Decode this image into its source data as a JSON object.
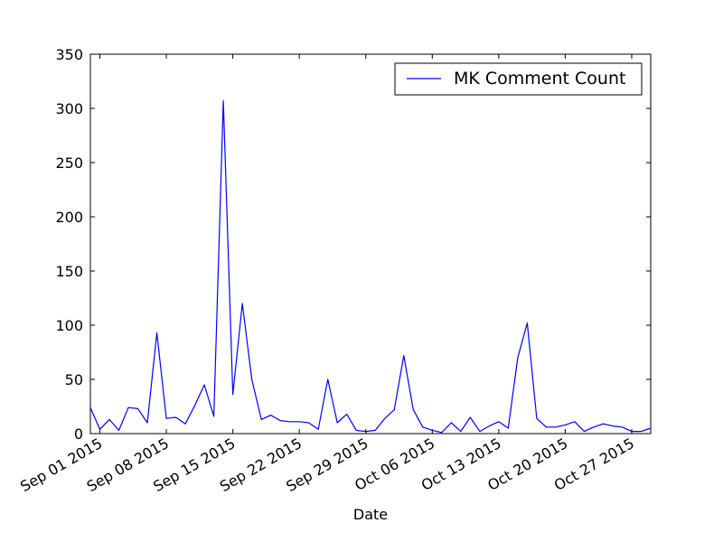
{
  "chart_data": {
    "type": "line",
    "title": "",
    "xlabel": "Date",
    "ylabel": "",
    "ylim": [
      0,
      350
    ],
    "xlim": [
      "2015-08-31",
      "2015-10-29"
    ],
    "grid": false,
    "legend_position": "upper right",
    "y_ticks": [
      0,
      50,
      100,
      150,
      200,
      250,
      300,
      350
    ],
    "x_ticks": [
      {
        "date": "2015-09-01",
        "label": "Sep 01 2015"
      },
      {
        "date": "2015-09-08",
        "label": "Sep 08 2015"
      },
      {
        "date": "2015-09-15",
        "label": "Sep 15 2015"
      },
      {
        "date": "2015-09-22",
        "label": "Sep 22 2015"
      },
      {
        "date": "2015-09-29",
        "label": "Sep 29 2015"
      },
      {
        "date": "2015-10-06",
        "label": "Oct 06 2015"
      },
      {
        "date": "2015-10-13",
        "label": "Oct 13 2015"
      },
      {
        "date": "2015-10-20",
        "label": "Oct 20 2015"
      },
      {
        "date": "2015-10-27",
        "label": "Oct 27 2015"
      }
    ],
    "series": [
      {
        "name": "MK Comment Count",
        "color": "#0000ff",
        "x": [
          "2015-08-31",
          "2015-09-01",
          "2015-09-02",
          "2015-09-03",
          "2015-09-04",
          "2015-09-05",
          "2015-09-06",
          "2015-09-07",
          "2015-09-08",
          "2015-09-09",
          "2015-09-10",
          "2015-09-11",
          "2015-09-12",
          "2015-09-13",
          "2015-09-14",
          "2015-09-15",
          "2015-09-16",
          "2015-09-17",
          "2015-09-18",
          "2015-09-19",
          "2015-09-20",
          "2015-09-21",
          "2015-09-22",
          "2015-09-23",
          "2015-09-24",
          "2015-09-25",
          "2015-09-26",
          "2015-09-27",
          "2015-09-28",
          "2015-09-29",
          "2015-09-30",
          "2015-10-01",
          "2015-10-02",
          "2015-10-03",
          "2015-10-04",
          "2015-10-05",
          "2015-10-06",
          "2015-10-07",
          "2015-10-08",
          "2015-10-09",
          "2015-10-10",
          "2015-10-11",
          "2015-10-12",
          "2015-10-13",
          "2015-10-14",
          "2015-10-15",
          "2015-10-16",
          "2015-10-17",
          "2015-10-18",
          "2015-10-19",
          "2015-10-20",
          "2015-10-21",
          "2015-10-22",
          "2015-10-23",
          "2015-10-24",
          "2015-10-25",
          "2015-10-26",
          "2015-10-27",
          "2015-10-28",
          "2015-10-29"
        ],
        "values": [
          24,
          4,
          13,
          3,
          24,
          23,
          10,
          93,
          14,
          15,
          9,
          26,
          45,
          16,
          307,
          36,
          120,
          50,
          13,
          17,
          12,
          11,
          11,
          10,
          4,
          50,
          10,
          18,
          3,
          2,
          3,
          14,
          22,
          72,
          22,
          6,
          3,
          1,
          10,
          2,
          15,
          2,
          7,
          11,
          5,
          70,
          102,
          14,
          6,
          6,
          8,
          11,
          2,
          6,
          9,
          7,
          6,
          2,
          2,
          5
        ]
      }
    ]
  }
}
